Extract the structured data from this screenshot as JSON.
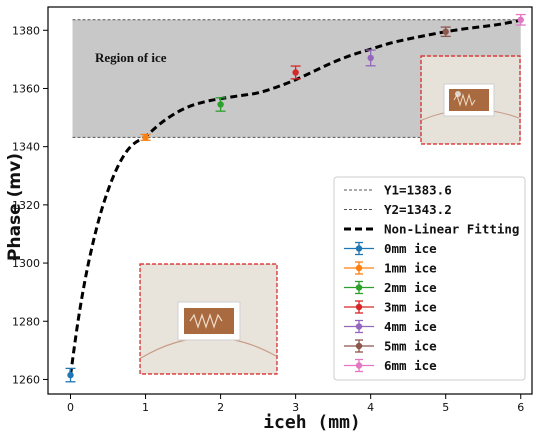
{
  "chart_data": {
    "type": "scatter",
    "xlabel": "iceh (mm)",
    "ylabel": "Phase (mv)",
    "xlim": [
      -0.3,
      6.15
    ],
    "ylim": [
      1255,
      1388
    ],
    "xticks": [
      0,
      1,
      2,
      3,
      4,
      5,
      6
    ],
    "yticks": [
      1260,
      1280,
      1300,
      1320,
      1340,
      1360,
      1380
    ],
    "grid": false,
    "legend_position": "lower-right",
    "region": {
      "label": "Region of ice",
      "y_low": 1343.2,
      "y_high": 1383.6,
      "color": "#c8c8c8"
    },
    "reference_lines": [
      {
        "name": "Y1=1383.6",
        "y": 1383.6,
        "color": "#555555",
        "style": "dashed"
      },
      {
        "name": "Y2=1343.2",
        "y": 1343.2,
        "color": "#555555",
        "style": "dashed"
      }
    ],
    "fit": {
      "name": "Non-Linear Fitting",
      "color": "#000000",
      "style": "dashed",
      "x": [
        0,
        0.1,
        0.2,
        0.3,
        0.4,
        0.5,
        0.6,
        0.7,
        0.8,
        0.9,
        1.0,
        1.2,
        1.4,
        1.6,
        1.8,
        2.0,
        2.25,
        2.5,
        2.75,
        3.0,
        3.25,
        3.5,
        3.75,
        4.0,
        4.25,
        4.5,
        4.75,
        5.0,
        5.25,
        5.5,
        5.75,
        6.0
      ],
      "y": [
        1261.5,
        1280,
        1295,
        1307,
        1317,
        1325,
        1331.5,
        1336.5,
        1340,
        1342,
        1343.5,
        1348,
        1351.5,
        1354,
        1355.5,
        1356.5,
        1357.5,
        1358.5,
        1360.5,
        1363,
        1366,
        1369,
        1371.5,
        1373.5,
        1375.5,
        1377,
        1378.3,
        1379.5,
        1380.5,
        1381.3,
        1382.2,
        1383.5
      ]
    },
    "series": [
      {
        "name": "0mm ice",
        "x": 0,
        "y": 1261.5,
        "err": 2.3,
        "color": "#1f77b4"
      },
      {
        "name": "1mm ice",
        "x": 1,
        "y": 1343.2,
        "err": 1.0,
        "color": "#ff7f0e"
      },
      {
        "name": "2mm ice",
        "x": 2,
        "y": 1354.5,
        "err": 2.3,
        "color": "#2ca02c"
      },
      {
        "name": "3mm ice",
        "x": 3,
        "y": 1365.5,
        "err": 2.2,
        "color": "#d62728"
      },
      {
        "name": "4mm ice",
        "x": 4,
        "y": 1370.5,
        "err": 2.7,
        "color": "#9467bd"
      },
      {
        "name": "5mm ice",
        "x": 5,
        "y": 1379.5,
        "err": 1.6,
        "color": "#8c564b"
      },
      {
        "name": "6mm ice",
        "x": 6,
        "y": 1383.6,
        "err": 1.8,
        "color": "#e377c2"
      }
    ]
  },
  "insets": [
    {
      "name": "sensor-photo-iced",
      "border_color": "#dd2222"
    },
    {
      "name": "sensor-photo-bare",
      "border_color": "#dd2222"
    }
  ]
}
